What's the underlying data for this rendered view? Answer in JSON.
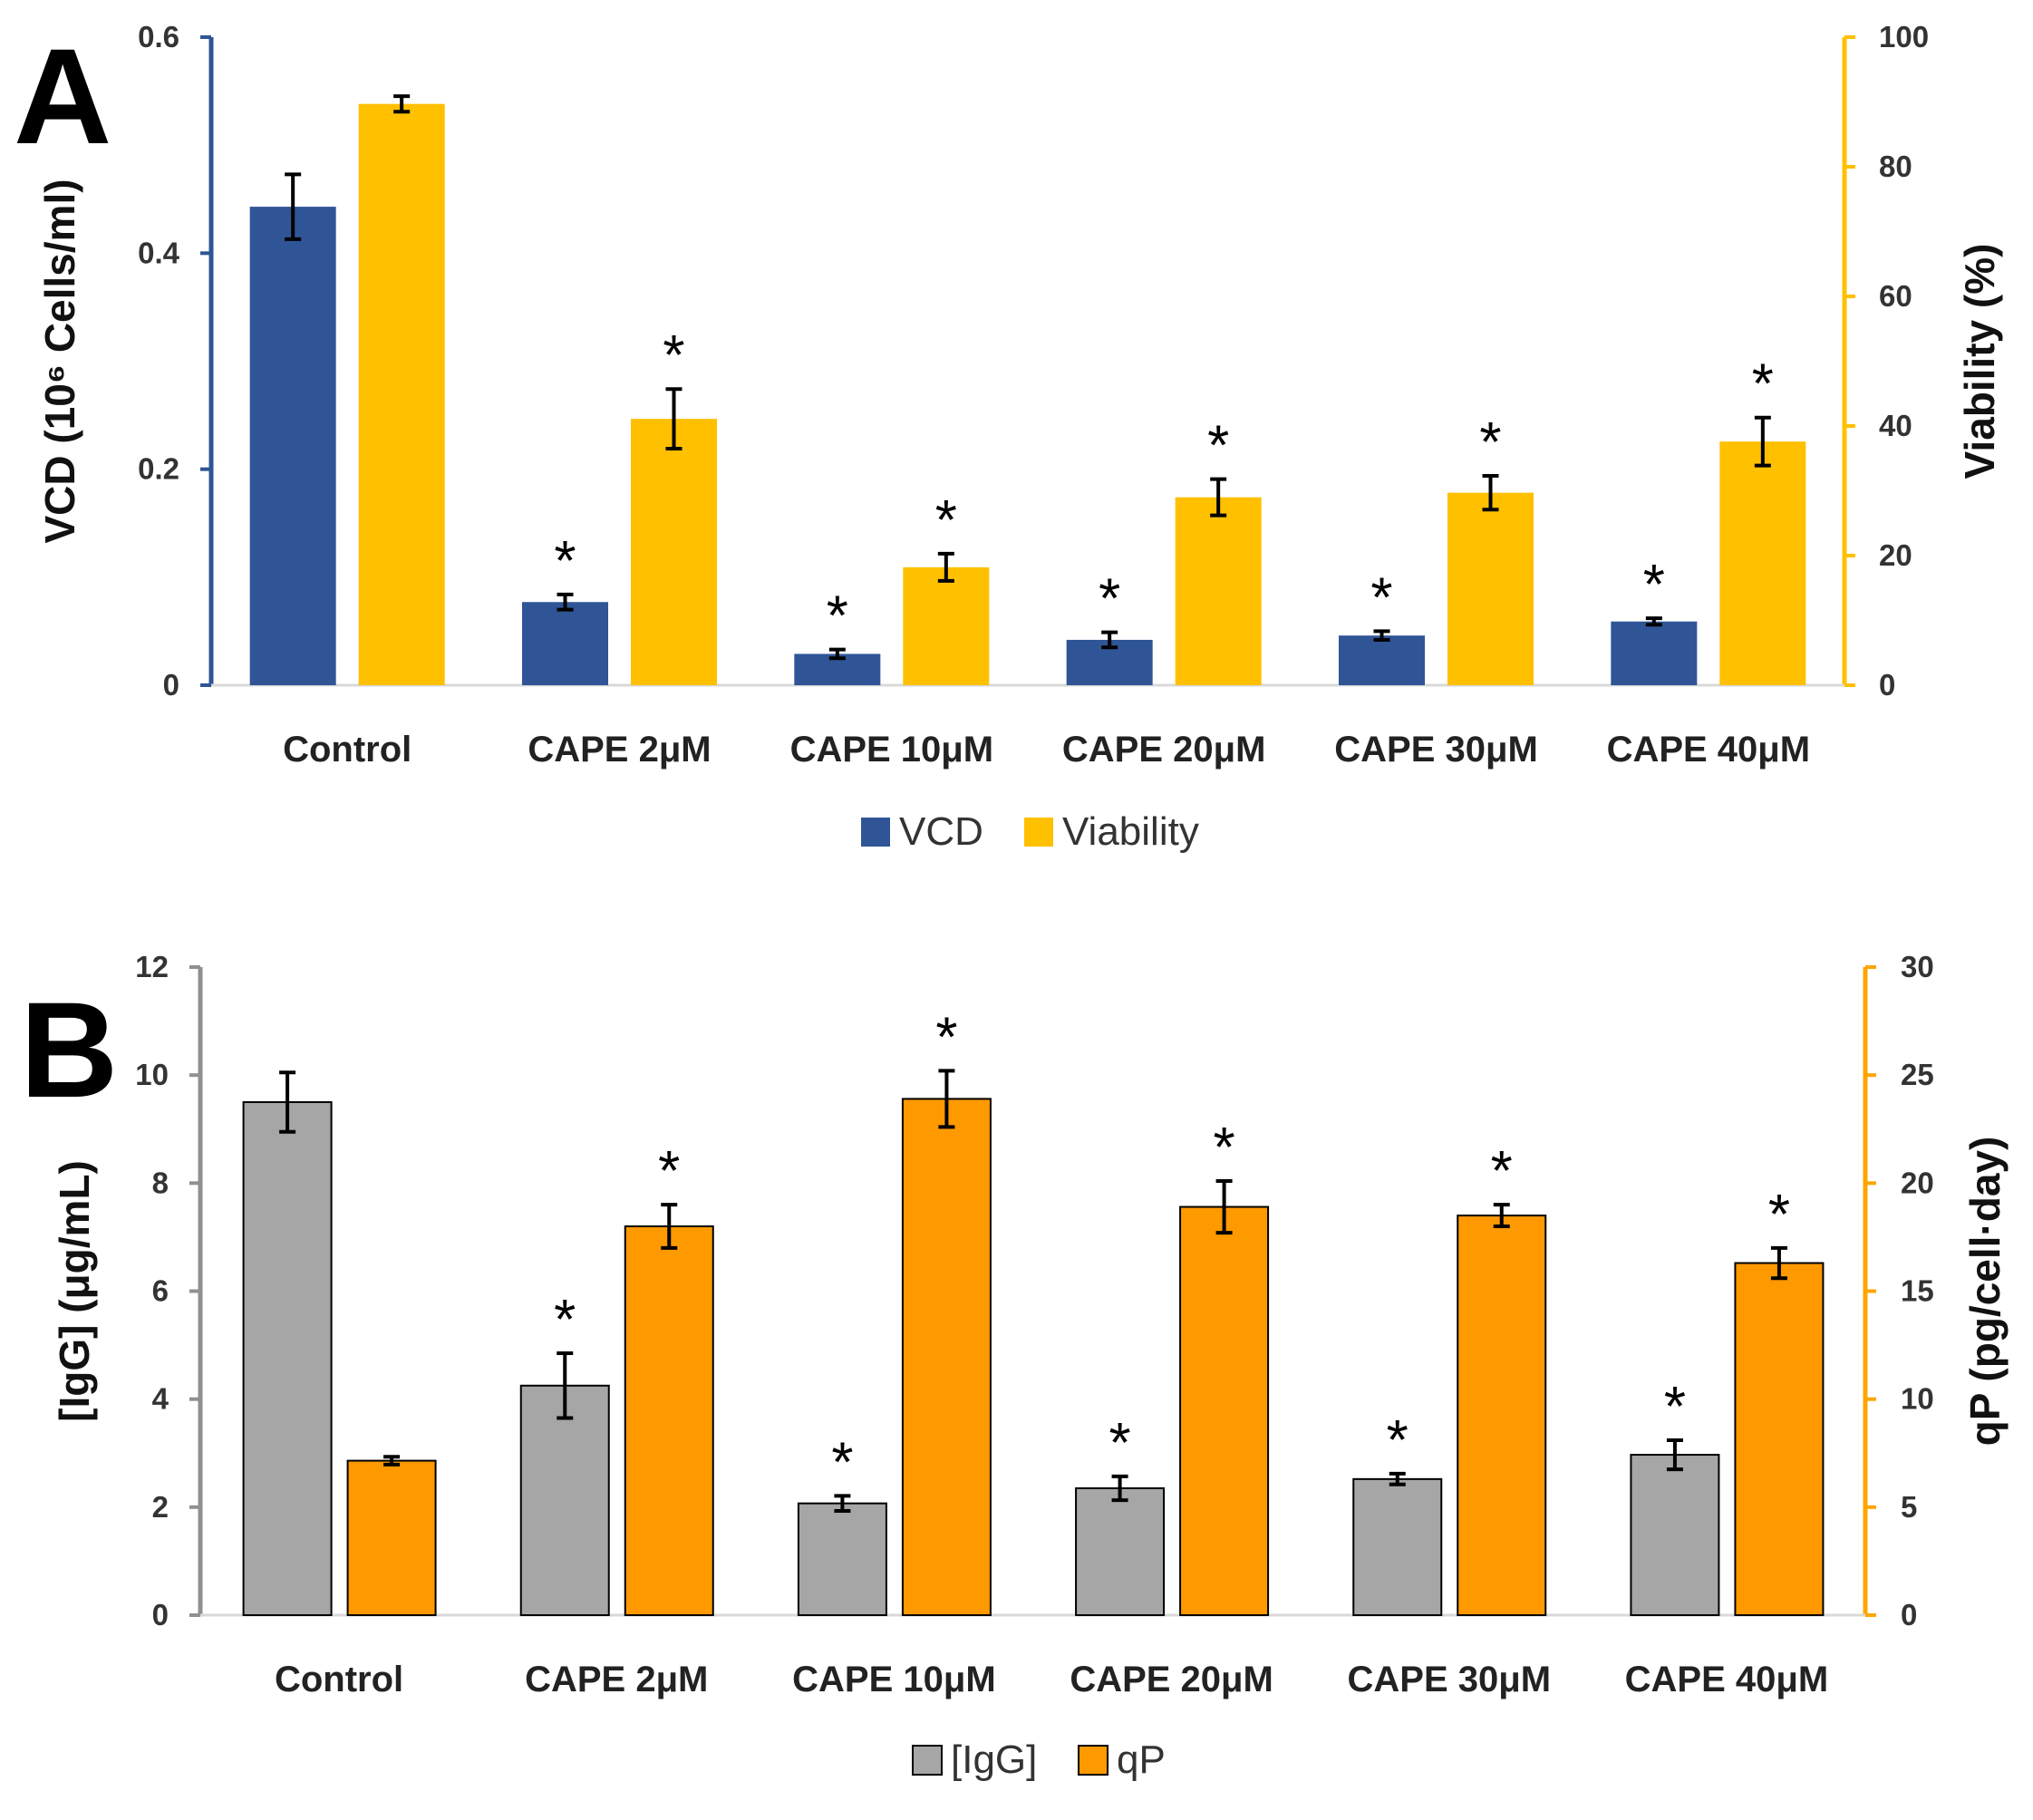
{
  "chart_data": [
    {
      "panel": "A",
      "type": "bar",
      "categories": [
        "Control",
        "CAPE 2μM",
        "CAPE 10μM",
        "CAPE 20μM",
        "CAPE 30μM",
        "CAPE 40μM"
      ],
      "left_axis": {
        "label": "VCD (10⁶ Cells/ml)",
        "ylim": [
          0,
          0.6
        ],
        "ticks": [
          "0",
          "0.2",
          "0.4",
          "0.6"
        ],
        "color": "#2e5597"
      },
      "right_axis": {
        "label": "Viability (%)",
        "ylim": [
          0,
          100
        ],
        "ticks": [
          "0",
          "20",
          "40",
          "60",
          "80",
          "100"
        ],
        "color": "#ffc000"
      },
      "series": [
        {
          "name": "VCD",
          "axis": "left",
          "color": "#2f5597",
          "values": [
            0.443,
            0.077,
            0.029,
            0.042,
            0.046,
            0.059
          ],
          "errors": [
            0.03,
            0.007,
            0.004,
            0.007,
            0.004,
            0.003
          ],
          "significant": [
            false,
            true,
            true,
            true,
            true,
            true
          ]
        },
        {
          "name": "Viability",
          "axis": "right",
          "color": "#ffc000",
          "values": [
            89.7,
            41.1,
            18.2,
            29.0,
            29.7,
            37.6
          ],
          "errors": [
            1.2,
            4.6,
            2.1,
            2.8,
            2.6,
            3.7
          ],
          "significant": [
            false,
            true,
            true,
            true,
            true,
            true
          ]
        }
      ],
      "significance_marker": "*"
    },
    {
      "panel": "B",
      "type": "bar",
      "categories": [
        "Control",
        "CAPE 2μM",
        "CAPE 10μM",
        "CAPE 20μM",
        "CAPE 30μM",
        "CAPE 40μM"
      ],
      "left_axis": {
        "label": "[IgG] (μg/mL)",
        "ylim": [
          0,
          12
        ],
        "ticks": [
          "0",
          "2",
          "4",
          "6",
          "8",
          "10",
          "12"
        ],
        "color": "#909090"
      },
      "right_axis": {
        "label": "qP (pg/cell·day)",
        "ylim": [
          0,
          30
        ],
        "ticks": [
          "0",
          "5",
          "10",
          "15",
          "20",
          "25",
          "30"
        ],
        "color": "#ffa500"
      },
      "series": [
        {
          "name": "[IgG]",
          "axis": "left",
          "color": "#a6a6a6",
          "values": [
            9.5,
            4.25,
            2.07,
            2.35,
            2.52,
            2.97
          ],
          "errors": [
            0.55,
            0.6,
            0.14,
            0.22,
            0.1,
            0.27
          ],
          "significant": [
            false,
            true,
            true,
            true,
            true,
            true
          ]
        },
        {
          "name": "qP",
          "axis": "right",
          "color": "#ff9900",
          "values": [
            7.15,
            18.0,
            23.9,
            18.9,
            18.5,
            16.3
          ],
          "errors": [
            0.18,
            1.0,
            1.3,
            1.2,
            0.5,
            0.7
          ],
          "significant": [
            false,
            true,
            true,
            true,
            true,
            true
          ]
        }
      ],
      "significance_marker": "*"
    }
  ]
}
